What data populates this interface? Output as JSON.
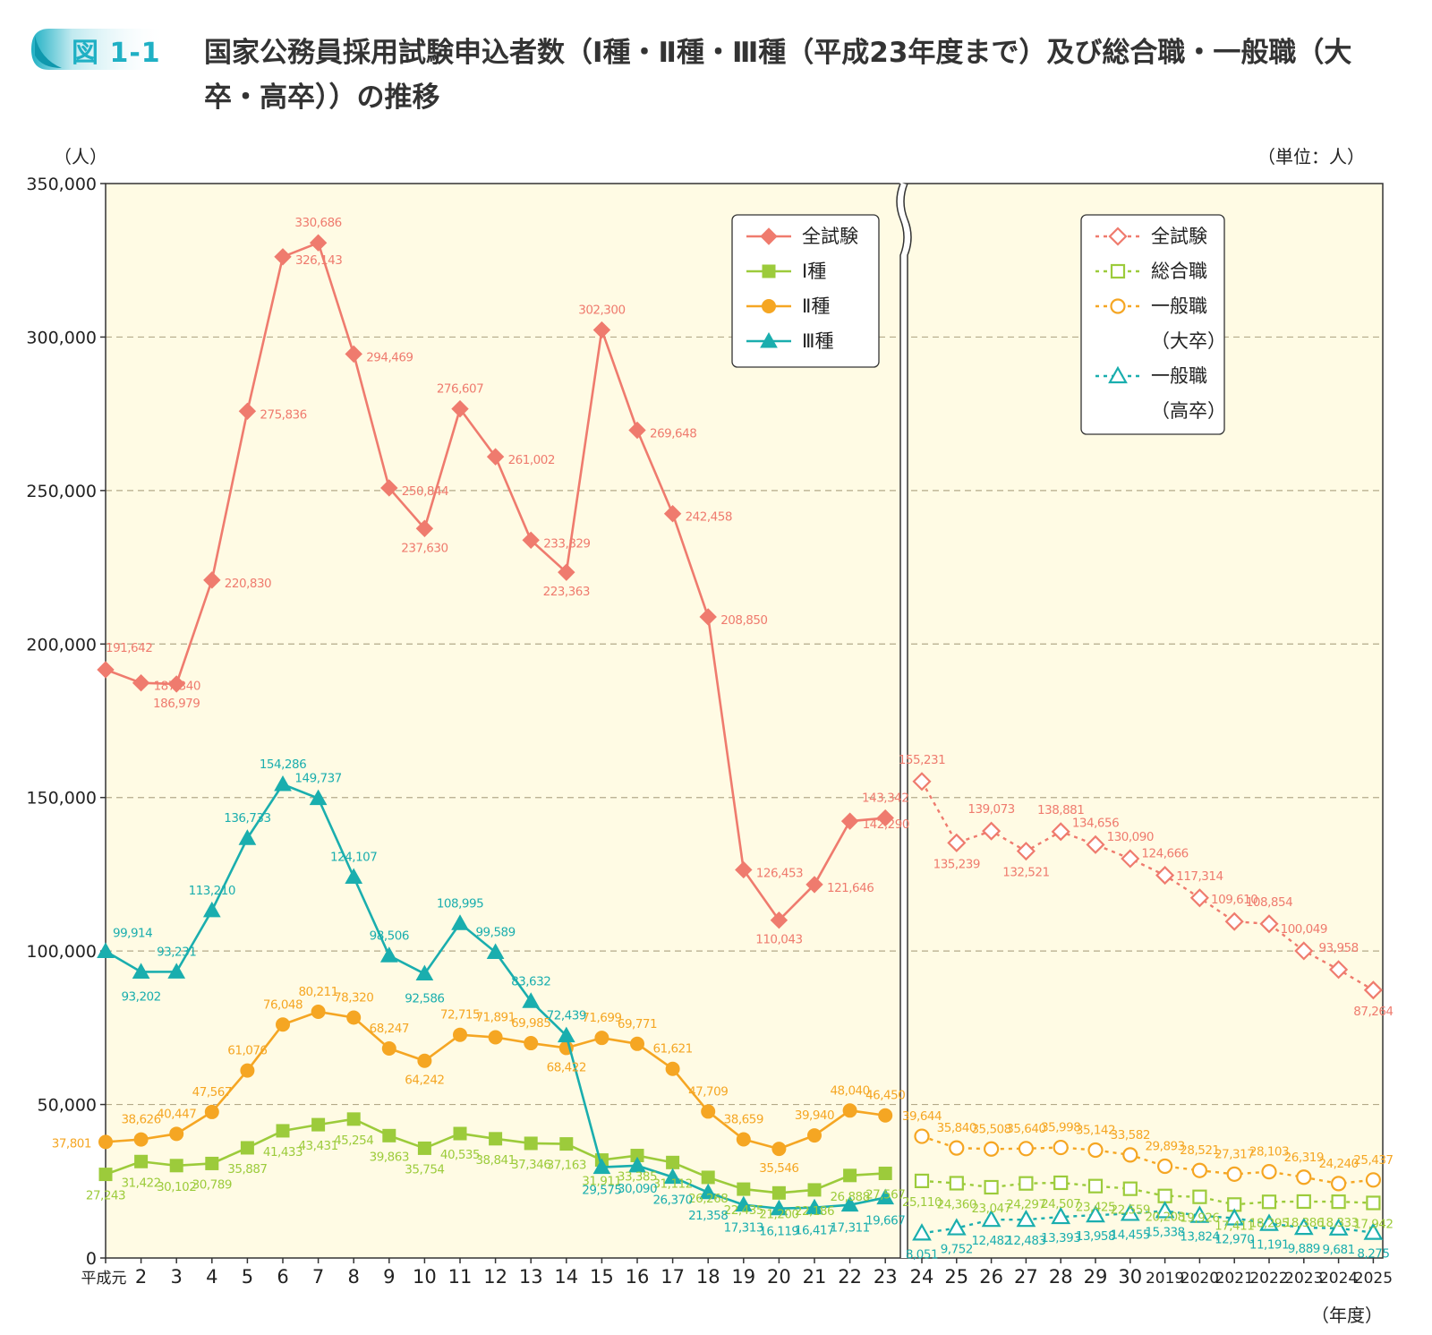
{
  "figure": {
    "badge": "図 1-1",
    "title": "国家公務員採用試験申込者数（Ⅰ種・Ⅱ種・Ⅲ種（平成23年度まで）及び総合職・一般職（大卒・高卒））の推移"
  },
  "chart_data": {
    "type": "line",
    "ylabel": "（人）",
    "unit_note": "（単位：人）",
    "xlabel": "（年度）",
    "ylim": [
      0,
      350000
    ],
    "yticks": [
      "0",
      "50,000",
      "100,000",
      "150,000",
      "200,000",
      "250,000",
      "300,000",
      "350,000"
    ],
    "grid": "dashed horizontal",
    "panel_left": {
      "categories": [
        "平成元",
        "2",
        "3",
        "4",
        "5",
        "6",
        "7",
        "8",
        "9",
        "10",
        "11",
        "12",
        "13",
        "14",
        "15",
        "16",
        "17",
        "18",
        "19",
        "20",
        "21",
        "22",
        "23"
      ],
      "legend": [
        {
          "name": "全試験",
          "color": "#ef7b6e",
          "marker": "diamond"
        },
        {
          "name": "Ⅰ種",
          "color": "#9ccb3b",
          "marker": "square"
        },
        {
          "name": "Ⅱ種",
          "color": "#f5a623",
          "marker": "circle"
        },
        {
          "name": "Ⅲ種",
          "color": "#1aaeae",
          "marker": "triangle"
        }
      ],
      "series": [
        {
          "name": "全試験",
          "values": [
            191642,
            187340,
            186979,
            220830,
            275836,
            326143,
            330686,
            294469,
            250844,
            237630,
            276607,
            261002,
            233829,
            223363,
            302300,
            269648,
            242458,
            208850,
            126453,
            110043,
            121646,
            142290,
            143342
          ],
          "labels": [
            "191,642",
            "187,340",
            "186,979",
            "220,830",
            "275,836",
            "326,143",
            "330,686",
            "294,469",
            "250,844",
            "237,630",
            "276,607",
            "261,002",
            "233,829",
            "223,363",
            "302,300",
            "269,648",
            "242,458",
            "208,850",
            "126,453",
            "110,043",
            "121,646",
            "142,290",
            "143,342"
          ]
        },
        {
          "name": "Ⅰ種",
          "values": [
            27243,
            31422,
            30102,
            30789,
            35887,
            41433,
            43431,
            45254,
            39863,
            35754,
            40535,
            38841,
            37346,
            37163,
            31911,
            33385,
            31112,
            26268,
            22435,
            21200,
            22186,
            26888,
            27567
          ],
          "labels": [
            "27,243",
            "31,422",
            "30,102",
            "30,789",
            "35,887",
            "41,433",
            "43,431",
            "45,254",
            "39,863",
            "35,754",
            "40,535",
            "38,841",
            "37,346",
            "37,163",
            "31,911",
            "33,385",
            "31,112",
            "26,268",
            "22,435",
            "21,200",
            "22,186",
            "26,888",
            "27,567"
          ]
        },
        {
          "name": "Ⅱ種",
          "values": [
            37801,
            38626,
            40447,
            47567,
            61076,
            76048,
            80211,
            78320,
            68247,
            64242,
            72715,
            71891,
            69985,
            68422,
            71699,
            69771,
            61621,
            47709,
            38659,
            35546,
            39940,
            48040,
            46450
          ],
          "labels": [
            "37,801",
            "38,626",
            "40,447",
            "47,567",
            "61,076",
            "76,048",
            "80,211",
            "78,320",
            "68,247",
            "64,242",
            "72,715",
            "71,891",
            "69,985",
            "68,422",
            "71,699",
            "69,771",
            "61,621",
            "47,709",
            "38,659",
            "35,546",
            "39,940",
            "48,040",
            "46,450"
          ]
        },
        {
          "name": "Ⅲ種",
          "values": [
            99914,
            93202,
            93231,
            113210,
            136733,
            154286,
            149737,
            124107,
            98506,
            92586,
            108995,
            99589,
            83632,
            72439,
            29575,
            30090,
            26370,
            21358,
            17313,
            16119,
            16417,
            17311,
            19667
          ],
          "labels": [
            "99,914",
            "93,202",
            "93,231",
            "113,210",
            "136,733",
            "154,286",
            "149,737",
            "124,107",
            "98,506",
            "92,586",
            "108,995",
            "99,589",
            "83,632",
            "72,439",
            "29,575",
            "30,090",
            "26,370",
            "21,358",
            "17,313",
            "16,119",
            "16,417",
            "17,311",
            "19,667"
          ]
        }
      ]
    },
    "panel_right": {
      "categories": [
        "24",
        "25",
        "26",
        "27",
        "28",
        "29",
        "30",
        "2019",
        "2020",
        "2021",
        "2022",
        "2023",
        "2024",
        "2025"
      ],
      "legend": [
        {
          "name": "全試験",
          "color": "#ef7b6e",
          "marker": "diamond"
        },
        {
          "name": "総合職",
          "color": "#9ccb3b",
          "marker": "square"
        },
        {
          "name": "一般職",
          "sub": "（大卒）",
          "color": "#f5a623",
          "marker": "circle"
        },
        {
          "name": "一般職",
          "sub": "（高卒）",
          "color": "#1aaeae",
          "marker": "triangle"
        }
      ],
      "series": [
        {
          "name": "全試験",
          "values": [
            155231,
            135239,
            139073,
            132521,
            138881,
            134656,
            130090,
            124666,
            117314,
            109610,
            108854,
            100049,
            93958,
            87264
          ],
          "labels": [
            "155,231",
            "135,239",
            "139,073",
            "132,521",
            "138,881",
            "134,656",
            "130,090",
            "124,666",
            "117,314",
            "109,610",
            "108,854",
            "100,049",
            "93,958",
            "87,264"
          ]
        },
        {
          "name": "総合職",
          "values": [
            25110,
            24360,
            23047,
            24297,
            24507,
            23425,
            22559,
            20208,
            19926,
            17411,
            18295,
            18386,
            18333,
            17942
          ],
          "labels": [
            "25,110",
            "24,360",
            "23,047",
            "24,297",
            "24,507",
            "23,425",
            "22,559",
            "20,208",
            "19,926",
            "17,411",
            "18,295",
            "18,386",
            "18,333",
            "17,942"
          ]
        },
        {
          "name": "一般職（大卒）",
          "values": [
            39644,
            35840,
            35508,
            35640,
            35998,
            35142,
            33582,
            29893,
            28521,
            27317,
            28103,
            26319,
            24240,
            25437
          ],
          "labels": [
            "39,644",
            "35,840",
            "35,508",
            "35,640",
            "35,998",
            "35,142",
            "33,582",
            "29,893",
            "28,521",
            "27,317",
            "28,103",
            "26,319",
            "24,240",
            "25,437"
          ]
        },
        {
          "name": "一般職（高卒）",
          "values": [
            8051,
            9752,
            12482,
            12483,
            13393,
            13958,
            14455,
            15338,
            13824,
            12970,
            11191,
            9889,
            9681,
            8275
          ],
          "labels": [
            "8,051",
            "9,752",
            "12,482",
            "12,483",
            "13,393",
            "13,958",
            "14,455",
            "15,338",
            "13,824",
            "12,970",
            "11,191",
            "9,889",
            "9,681",
            "8,275"
          ]
        }
      ]
    }
  }
}
